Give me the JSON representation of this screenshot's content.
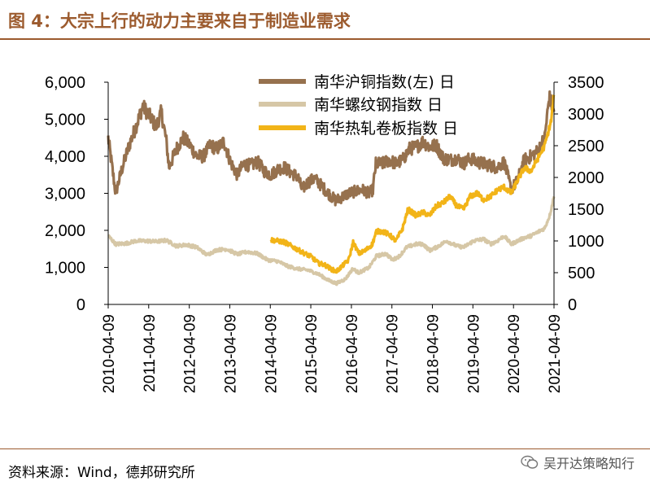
{
  "figure": {
    "title": "图 4：大宗上行的动力主要来自于制造业需求",
    "source": "资料来源：Wind，德邦研究所",
    "watermark": "吴开达策略知行"
  },
  "colors": {
    "brand": "#9c5b2e",
    "copper": "#96714e",
    "rebar": "#d6c7a6",
    "hotcoil": "#f2b418",
    "axis": "#000000"
  },
  "chart_data": {
    "type": "line",
    "x_type": "date",
    "x_range": [
      "2010-04-09",
      "2021-04-09"
    ],
    "x_ticks": [
      "2010-04-09",
      "2011-04-09",
      "2012-04-09",
      "2013-04-09",
      "2014-04-09",
      "2015-04-09",
      "2016-04-09",
      "2017-04-09",
      "2018-04-09",
      "2019-04-09",
      "2020-04-09",
      "2021-04-09"
    ],
    "y_left": {
      "range": [
        0,
        6000
      ],
      "ticks": [
        0,
        1000,
        2000,
        3000,
        4000,
        5000,
        6000
      ],
      "tick_labels": [
        "0",
        "1,000",
        "2,000",
        "3,000",
        "4,000",
        "5,000",
        "6,000"
      ]
    },
    "y_right": {
      "range": [
        0,
        3500
      ],
      "ticks": [
        0,
        500,
        1000,
        1500,
        2000,
        2500,
        3000,
        3500
      ],
      "tick_labels": [
        "0",
        "500",
        "1000",
        "1500",
        "2000",
        "2500",
        "3000",
        "3500"
      ]
    },
    "legend_position": "top-right",
    "grid": false,
    "series": [
      {
        "name": "南华沪铜指数(左) 日",
        "axis": "left",
        "points": [
          [
            "2010-04-09",
            4500
          ],
          [
            "2010-06-15",
            3000
          ],
          [
            "2010-08-15",
            3700
          ],
          [
            "2010-10-15",
            4300
          ],
          [
            "2010-12-15",
            4800
          ],
          [
            "2011-02-15",
            5350
          ],
          [
            "2011-04-15",
            5100
          ],
          [
            "2011-06-15",
            4800
          ],
          [
            "2011-08-01",
            5200
          ],
          [
            "2011-09-15",
            4400
          ],
          [
            "2011-10-10",
            3700
          ],
          [
            "2011-12-15",
            4200
          ],
          [
            "2012-02-15",
            4500
          ],
          [
            "2012-04-15",
            4300
          ],
          [
            "2012-06-15",
            4000
          ],
          [
            "2012-08-15",
            4000
          ],
          [
            "2012-10-15",
            4300
          ],
          [
            "2012-12-15",
            4200
          ],
          [
            "2013-02-15",
            4400
          ],
          [
            "2013-04-15",
            3850
          ],
          [
            "2013-06-15",
            3500
          ],
          [
            "2013-08-15",
            3800
          ],
          [
            "2013-10-15",
            3750
          ],
          [
            "2013-12-15",
            3850
          ],
          [
            "2014-02-15",
            3600
          ],
          [
            "2014-04-15",
            3500
          ],
          [
            "2014-06-15",
            3650
          ],
          [
            "2014-08-15",
            3700
          ],
          [
            "2014-10-15",
            3550
          ],
          [
            "2014-12-15",
            3450
          ],
          [
            "2015-01-20",
            3100
          ],
          [
            "2015-03-15",
            3300
          ],
          [
            "2015-05-15",
            3400
          ],
          [
            "2015-07-15",
            3200
          ],
          [
            "2015-09-15",
            3000
          ],
          [
            "2015-11-20",
            2800
          ],
          [
            "2016-01-15",
            2900
          ],
          [
            "2016-03-15",
            3000
          ],
          [
            "2016-05-15",
            3050
          ],
          [
            "2016-07-15",
            3100
          ],
          [
            "2016-09-15",
            3000
          ],
          [
            "2016-10-20",
            3100
          ],
          [
            "2016-11-15",
            3800
          ],
          [
            "2017-01-15",
            3800
          ],
          [
            "2017-03-15",
            3900
          ],
          [
            "2017-05-15",
            3800
          ],
          [
            "2017-07-15",
            3900
          ],
          [
            "2017-09-15",
            4200
          ],
          [
            "2017-11-15",
            4250
          ],
          [
            "2018-01-15",
            4400
          ],
          [
            "2018-03-15",
            4250
          ],
          [
            "2018-05-15",
            4300
          ],
          [
            "2018-07-15",
            3950
          ],
          [
            "2018-09-15",
            3900
          ],
          [
            "2018-11-15",
            3950
          ],
          [
            "2019-01-15",
            3800
          ],
          [
            "2019-03-15",
            3950
          ],
          [
            "2019-05-15",
            3850
          ],
          [
            "2019-07-15",
            3800
          ],
          [
            "2019-09-15",
            3750
          ],
          [
            "2019-11-15",
            3700
          ],
          [
            "2020-01-15",
            3850
          ],
          [
            "2020-03-20",
            3100
          ],
          [
            "2020-05-15",
            3350
          ],
          [
            "2020-07-15",
            3900
          ],
          [
            "2020-09-15",
            4000
          ],
          [
            "2020-11-15",
            4150
          ],
          [
            "2021-01-15",
            4500
          ],
          [
            "2021-02-25",
            5600
          ],
          [
            "2021-04-09",
            5200
          ]
        ]
      },
      {
        "name": "南华螺纹钢指数 日",
        "axis": "right",
        "points": [
          [
            "2010-04-09",
            1080
          ],
          [
            "2010-06-15",
            950
          ],
          [
            "2010-09-15",
            960
          ],
          [
            "2010-12-15",
            1000
          ],
          [
            "2011-03-15",
            1000
          ],
          [
            "2011-06-15",
            990
          ],
          [
            "2011-09-15",
            1010
          ],
          [
            "2011-12-15",
            920
          ],
          [
            "2012-03-15",
            940
          ],
          [
            "2012-06-15",
            900
          ],
          [
            "2012-09-15",
            780
          ],
          [
            "2012-12-15",
            860
          ],
          [
            "2013-03-15",
            870
          ],
          [
            "2013-06-15",
            790
          ],
          [
            "2013-09-15",
            830
          ],
          [
            "2013-12-15",
            800
          ],
          [
            "2014-03-15",
            700
          ],
          [
            "2014-06-15",
            680
          ],
          [
            "2014-09-15",
            600
          ],
          [
            "2014-12-15",
            560
          ],
          [
            "2015-03-15",
            540
          ],
          [
            "2015-06-15",
            480
          ],
          [
            "2015-09-15",
            380
          ],
          [
            "2015-11-25",
            330
          ],
          [
            "2016-02-15",
            400
          ],
          [
            "2016-04-20",
            560
          ],
          [
            "2016-06-15",
            500
          ],
          [
            "2016-09-15",
            580
          ],
          [
            "2016-11-20",
            760
          ],
          [
            "2017-02-15",
            800
          ],
          [
            "2017-04-15",
            700
          ],
          [
            "2017-06-15",
            760
          ],
          [
            "2017-08-20",
            900
          ],
          [
            "2017-11-15",
            950
          ],
          [
            "2018-01-15",
            950
          ],
          [
            "2018-03-15",
            850
          ],
          [
            "2018-05-15",
            900
          ],
          [
            "2018-08-15",
            1000
          ],
          [
            "2018-11-15",
            920
          ],
          [
            "2019-01-15",
            900
          ],
          [
            "2019-04-15",
            1000
          ],
          [
            "2019-07-15",
            1030
          ],
          [
            "2019-09-15",
            950
          ],
          [
            "2019-11-15",
            1000
          ],
          [
            "2020-01-15",
            1080
          ],
          [
            "2020-03-20",
            950
          ],
          [
            "2020-05-15",
            1000
          ],
          [
            "2020-07-15",
            1050
          ],
          [
            "2020-09-15",
            1080
          ],
          [
            "2020-11-15",
            1140
          ],
          [
            "2021-01-15",
            1200
          ],
          [
            "2021-03-01",
            1400
          ],
          [
            "2021-04-09",
            1700
          ]
        ]
      },
      {
        "name": "南华热轧卷板指数 日",
        "axis": "right",
        "points": [
          [
            "2014-04-09",
            1020
          ],
          [
            "2014-06-15",
            1000
          ],
          [
            "2014-08-15",
            980
          ],
          [
            "2014-10-15",
            920
          ],
          [
            "2014-12-15",
            860
          ],
          [
            "2015-02-15",
            800
          ],
          [
            "2015-04-15",
            750
          ],
          [
            "2015-06-15",
            650
          ],
          [
            "2015-08-15",
            620
          ],
          [
            "2015-10-15",
            550
          ],
          [
            "2015-11-25",
            520
          ],
          [
            "2016-01-15",
            600
          ],
          [
            "2016-03-15",
            700
          ],
          [
            "2016-04-25",
            980
          ],
          [
            "2016-06-15",
            800
          ],
          [
            "2016-08-15",
            850
          ],
          [
            "2016-10-15",
            950
          ],
          [
            "2016-11-20",
            1150
          ],
          [
            "2017-01-15",
            1150
          ],
          [
            "2017-03-15",
            1100
          ],
          [
            "2017-05-15",
            1000
          ],
          [
            "2017-07-15",
            1200
          ],
          [
            "2017-09-01",
            1500
          ],
          [
            "2017-11-15",
            1400
          ],
          [
            "2018-01-15",
            1450
          ],
          [
            "2018-03-15",
            1400
          ],
          [
            "2018-05-15",
            1550
          ],
          [
            "2018-07-15",
            1600
          ],
          [
            "2018-09-15",
            1700
          ],
          [
            "2018-11-15",
            1550
          ],
          [
            "2019-01-15",
            1500
          ],
          [
            "2019-03-15",
            1700
          ],
          [
            "2019-05-15",
            1750
          ],
          [
            "2019-07-15",
            1650
          ],
          [
            "2019-09-15",
            1700
          ],
          [
            "2019-11-15",
            1800
          ],
          [
            "2020-01-15",
            1850
          ],
          [
            "2020-03-20",
            1750
          ],
          [
            "2020-05-15",
            1950
          ],
          [
            "2020-07-15",
            2150
          ],
          [
            "2020-09-15",
            2100
          ],
          [
            "2020-11-15",
            2300
          ],
          [
            "2021-01-15",
            2500
          ],
          [
            "2021-03-15",
            2900
          ],
          [
            "2021-04-09",
            3300
          ]
        ]
      }
    ]
  }
}
